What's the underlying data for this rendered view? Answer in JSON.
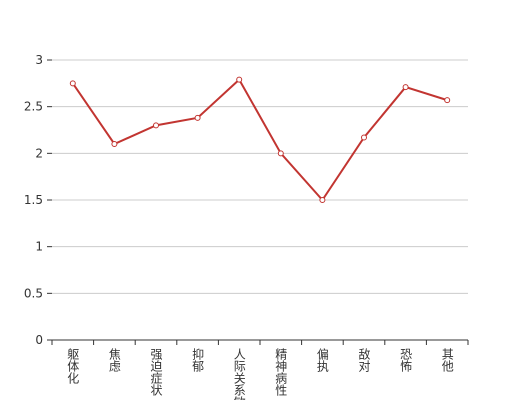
{
  "chart_data": {
    "type": "line",
    "categories": [
      "躯体化",
      "焦虑",
      "强迫症状",
      "抑郁",
      "人际关系敏感",
      "精神病性",
      "偏执",
      "敌对",
      "恐怖",
      "其他"
    ],
    "values": [
      2.75,
      2.1,
      2.3,
      2.38,
      2.79,
      2.0,
      1.5,
      2.17,
      2.71,
      2.57
    ],
    "color": "#c23531",
    "ylim": [
      0,
      3
    ],
    "yticks": [
      0,
      0.5,
      1,
      1.5,
      2,
      2.5,
      3
    ],
    "grid": true
  }
}
